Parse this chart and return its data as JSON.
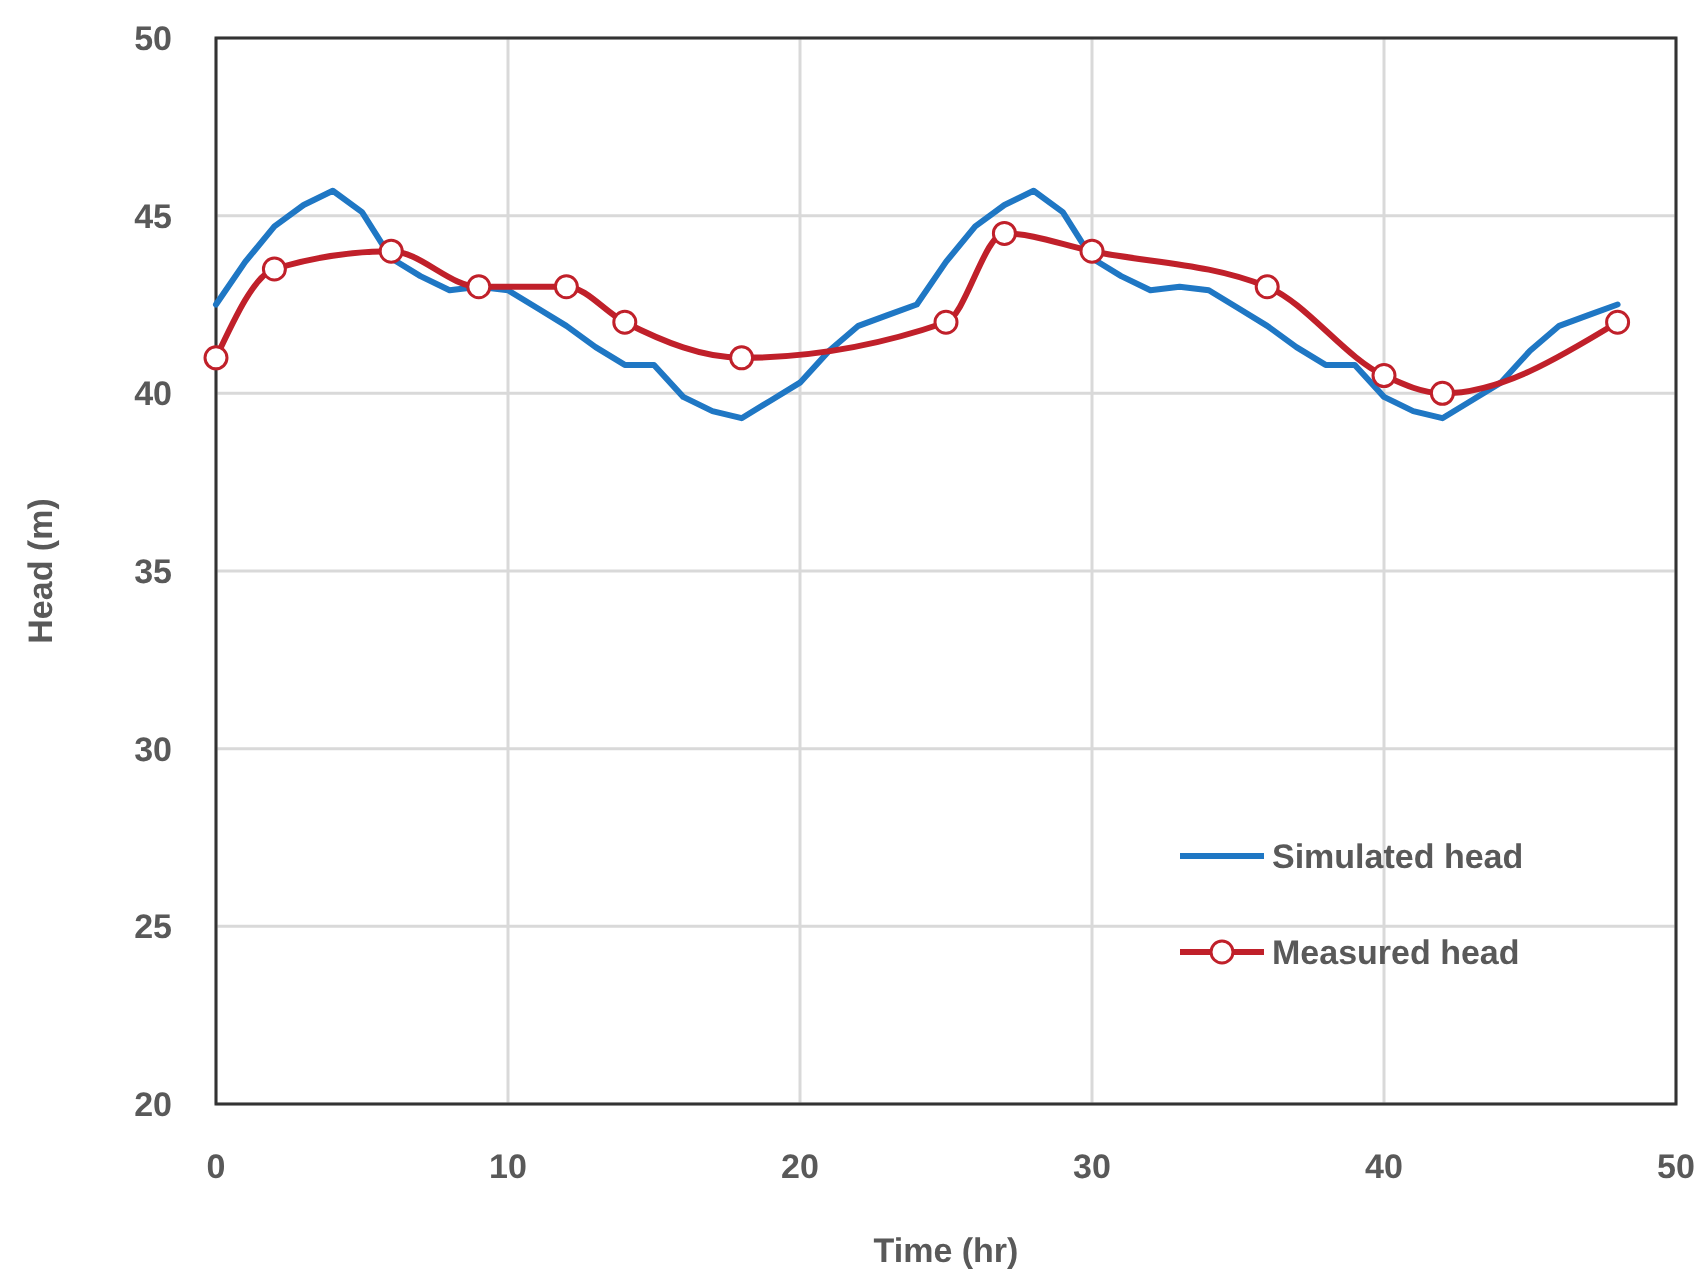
{
  "chart_data": {
    "type": "line",
    "xlabel": "Time (hr)",
    "ylabel": "Head (m)",
    "xlim": [
      0,
      50
    ],
    "xticks": [
      0,
      10,
      20,
      30,
      40,
      50
    ],
    "ylim": [
      20,
      50
    ],
    "yticks": [
      20,
      25,
      30,
      35,
      40,
      45,
      50
    ],
    "grid": true,
    "legend": "bottom right",
    "series": [
      {
        "name": "Simulated head",
        "color": "#1f77c4",
        "marker": "none",
        "x": [
          0,
          1,
          2,
          3,
          4,
          5,
          6,
          7,
          8,
          9,
          10,
          11,
          12,
          13,
          14,
          15,
          16,
          17,
          18,
          19,
          20,
          21,
          22,
          23,
          24,
          25,
          26,
          27,
          28,
          29,
          30,
          31,
          32,
          33,
          34,
          35,
          36,
          37,
          38,
          39,
          40,
          41,
          42,
          43,
          44,
          45,
          46,
          47,
          48
        ],
        "values": [
          42.5,
          43.7,
          44.7,
          45.3,
          45.7,
          45.1,
          43.8,
          43.3,
          42.9,
          43.0,
          42.9,
          42.4,
          41.9,
          41.3,
          40.8,
          40.8,
          39.9,
          39.5,
          39.3,
          39.8,
          40.3,
          41.2,
          41.9,
          42.2,
          42.5,
          43.7,
          44.7,
          45.3,
          45.7,
          45.1,
          43.8,
          43.3,
          42.9,
          43.0,
          42.9,
          42.4,
          41.9,
          41.3,
          40.8,
          40.8,
          39.9,
          39.5,
          39.3,
          39.8,
          40.3,
          41.2,
          41.9,
          42.2,
          42.5
        ]
      },
      {
        "name": "Measured head",
        "color": "#c0202a",
        "marker": "circle",
        "x": [
          0,
          2,
          6,
          9,
          12,
          14,
          18,
          25,
          27,
          30,
          36,
          40,
          42,
          48
        ],
        "values": [
          41,
          43.5,
          44,
          43,
          43,
          42,
          41,
          42,
          44.5,
          44,
          43,
          40.5,
          40,
          42
        ]
      }
    ]
  }
}
